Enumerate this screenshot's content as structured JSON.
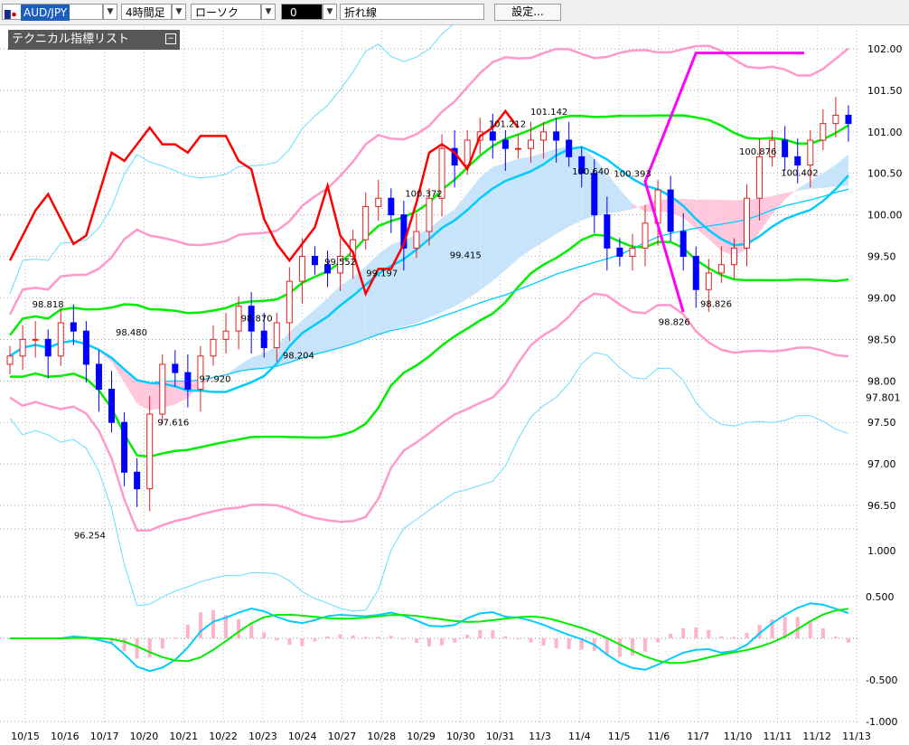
{
  "toolbar": {
    "symbol": "AUD/JPY",
    "timeframe": "4時間足",
    "chart_style": "ローソク",
    "color_value": "0",
    "line_type": "折れ線",
    "settings_label": "設定..."
  },
  "indicator_panel": {
    "title": "テクニカル指標リスト"
  },
  "colors": {
    "up_candle": "#e02020",
    "down_candle": "#0000ff",
    "lagging_line": "#ff0000",
    "ma_fast": "#00ee00",
    "ma_slow": "#00ccff",
    "bollinger_outer": "#ff99cc",
    "envelope": "#66ddff",
    "trendline": "#ff00ff",
    "kumo_bull": "#c8e4fb",
    "kumo_bear": "#ffc8dc"
  },
  "chart_data": [
    {
      "type": "candlestick",
      "title": "",
      "y_ticks": [
        "102.00",
        "101.50",
        "101.00",
        "100.50",
        "100.00",
        "99.50",
        "99.00",
        "98.50",
        "98.00",
        "97.50",
        "97.00",
        "96.50"
      ],
      "current_price_label": "97.801",
      "ylim": [
        96.0,
        102.3
      ],
      "x_tick_labels": [
        "10/15",
        "10/16",
        "10/17",
        "10/20",
        "10/21",
        "10/22",
        "10/23",
        "10/24",
        "10/27",
        "10/28",
        "10/29",
        "10/30",
        "10/31",
        "11/3",
        "11/4",
        "11/5",
        "11/6",
        "11/7",
        "11/10",
        "11/11",
        "11/12",
        "11/13"
      ],
      "price_annotations": [
        {
          "label": "98.818",
          "value": 98.818
        },
        {
          "label": "96.254",
          "value": 96.254
        },
        {
          "label": "98.480",
          "value": 98.48
        },
        {
          "label": "97.616",
          "value": 97.616
        },
        {
          "label": "97.920",
          "value": 97.92
        },
        {
          "label": "98.870",
          "value": 98.87
        },
        {
          "label": "98.204",
          "value": 98.204
        },
        {
          "label": "99.552",
          "value": 99.552
        },
        {
          "label": "99.197",
          "value": 99.197
        },
        {
          "label": "100.372",
          "value": 100.372
        },
        {
          "label": "99.415",
          "value": 99.415
        },
        {
          "label": "101.212",
          "value": 101.212
        },
        {
          "label": "101.142",
          "value": 101.142
        },
        {
          "label": "100.640",
          "value": 100.64
        },
        {
          "label": "100.393",
          "value": 100.393
        },
        {
          "label": "98.826",
          "value": 98.826
        },
        {
          "label": "98.826",
          "value": 98.826
        },
        {
          "label": "100.876",
          "value": 100.876
        },
        {
          "label": "100.402",
          "value": 100.402
        }
      ],
      "close_path": [
        98.3,
        98.5,
        98.5,
        98.3,
        98.7,
        98.6,
        98.2,
        97.9,
        97.5,
        96.9,
        96.7,
        97.6,
        98.2,
        98.1,
        97.9,
        98.3,
        98.5,
        98.6,
        98.9,
        98.6,
        98.4,
        98.7,
        99.2,
        99.5,
        99.4,
        99.3,
        99.5,
        99.7,
        100.1,
        100.2,
        100.0,
        99.6,
        99.8,
        100.2,
        100.8,
        100.6,
        100.9,
        101.0,
        100.9,
        100.8,
        100.8,
        100.9,
        101.0,
        100.9,
        100.7,
        100.5,
        100.0,
        99.6,
        99.5,
        99.6,
        99.9,
        100.3,
        99.8,
        99.5,
        99.1,
        99.3,
        99.4,
        99.6,
        100.2,
        100.7,
        100.9,
        100.7,
        100.6,
        100.9,
        101.1,
        101.2,
        101.1
      ]
    },
    {
      "type": "bar",
      "title": "",
      "y_ticks": [
        "0.500",
        "-0.500",
        "-1.000"
      ],
      "ylim": [
        -1.0,
        0.6
      ]
    }
  ]
}
